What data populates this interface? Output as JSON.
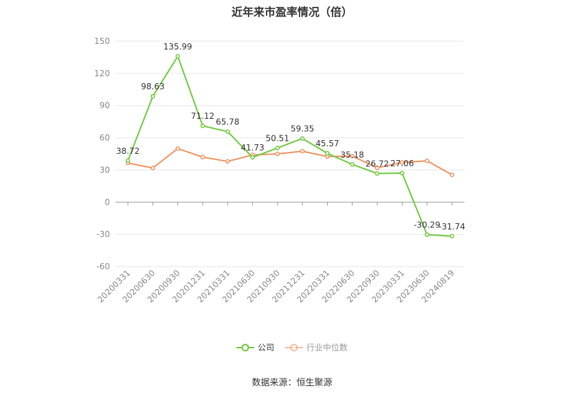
{
  "chart_data": {
    "type": "line",
    "title": "近年来市盈率情况（倍）",
    "categories": [
      "20200331",
      "20200630",
      "20200930",
      "20201231",
      "20210331",
      "20210630",
      "20210930",
      "20211231",
      "20220331",
      "20220630",
      "20220930",
      "20230331",
      "20230630",
      "20240819"
    ],
    "ylim": [
      -60,
      150
    ],
    "yticks": [
      -60,
      -30,
      0,
      30,
      60,
      90,
      120,
      150
    ],
    "grid": true,
    "legend_position": "bottom",
    "series": [
      {
        "name": "公司",
        "color": "#6cc93a",
        "values": [
          38.72,
          98.63,
          135.99,
          71.12,
          65.78,
          41.73,
          50.51,
          59.35,
          45.57,
          35.18,
          26.72,
          27.06,
          -30.29,
          -31.74
        ],
        "labels": [
          "38.72",
          "98.63",
          "135.99",
          "71.12",
          "65.78",
          "41.73",
          "50.51",
          "59.35",
          "45.57",
          "35.18",
          "26.72",
          "27.06",
          "-30.29",
          "-31.74"
        ]
      },
      {
        "name": "行业中位数",
        "color": "#f0915e",
        "values": [
          36.5,
          31.8,
          50.0,
          42.0,
          38.0,
          44.0,
          45.0,
          47.5,
          42.5,
          43.0,
          32.0,
          37.0,
          38.5,
          25.5
        ]
      }
    ],
    "source": "数据来源：恒生聚源"
  }
}
